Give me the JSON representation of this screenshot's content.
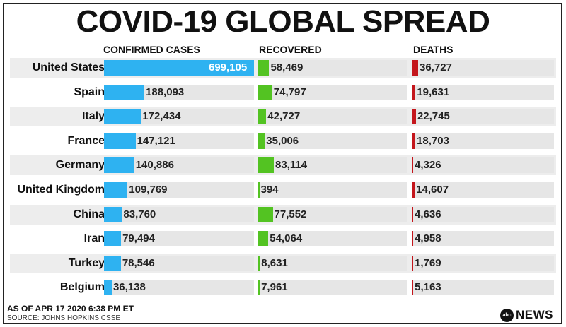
{
  "title": "COVID-19 GLOBAL SPREAD",
  "headers": {
    "confirmed": "CONFIRMED CASES",
    "recovered": "RECOVERED",
    "deaths": "DEATHS"
  },
  "footer": {
    "as_of": "AS OF APR 17 2020 6:38 PM ET",
    "source": "SOURCE: JOHNS HOPKINS CSSE"
  },
  "logo": {
    "mark": "abc",
    "text": "NEWS"
  },
  "colors": {
    "confirmed": "#2eb2f1",
    "recovered": "#53c322",
    "deaths": "#c4161c"
  },
  "chart_data": {
    "type": "bar",
    "categories": [
      "United States",
      "Spain",
      "Italy",
      "France",
      "Germany",
      "United Kingdom",
      "China",
      "Iran",
      "Turkey",
      "Belgium"
    ],
    "series": [
      {
        "name": "CONFIRMED CASES",
        "values": [
          699105,
          188093,
          172434,
          147121,
          140886,
          109769,
          83760,
          79494,
          78546,
          36138
        ],
        "labels": [
          "699,105",
          "188,093",
          "172,434",
          "147,121",
          "140,886",
          "109,769",
          "83,760",
          "79,494",
          "78,546",
          "36,138"
        ]
      },
      {
        "name": "RECOVERED",
        "values": [
          58469,
          74797,
          42727,
          35006,
          83114,
          394,
          77552,
          54064,
          8631,
          7961
        ],
        "labels": [
          "58,469",
          "74,797",
          "42,727",
          "35,006",
          "83,114",
          "394",
          "77,552",
          "54,064",
          "8,631",
          "7,961"
        ]
      },
      {
        "name": "DEATHS",
        "values": [
          36727,
          19631,
          22745,
          18703,
          4326,
          14607,
          4636,
          4958,
          1769,
          5163
        ],
        "labels": [
          "36,727",
          "19,631",
          "22,745",
          "18,703",
          "4,326",
          "14,607",
          "4,636",
          "4,958",
          "1,769",
          "5,163"
        ]
      }
    ]
  }
}
